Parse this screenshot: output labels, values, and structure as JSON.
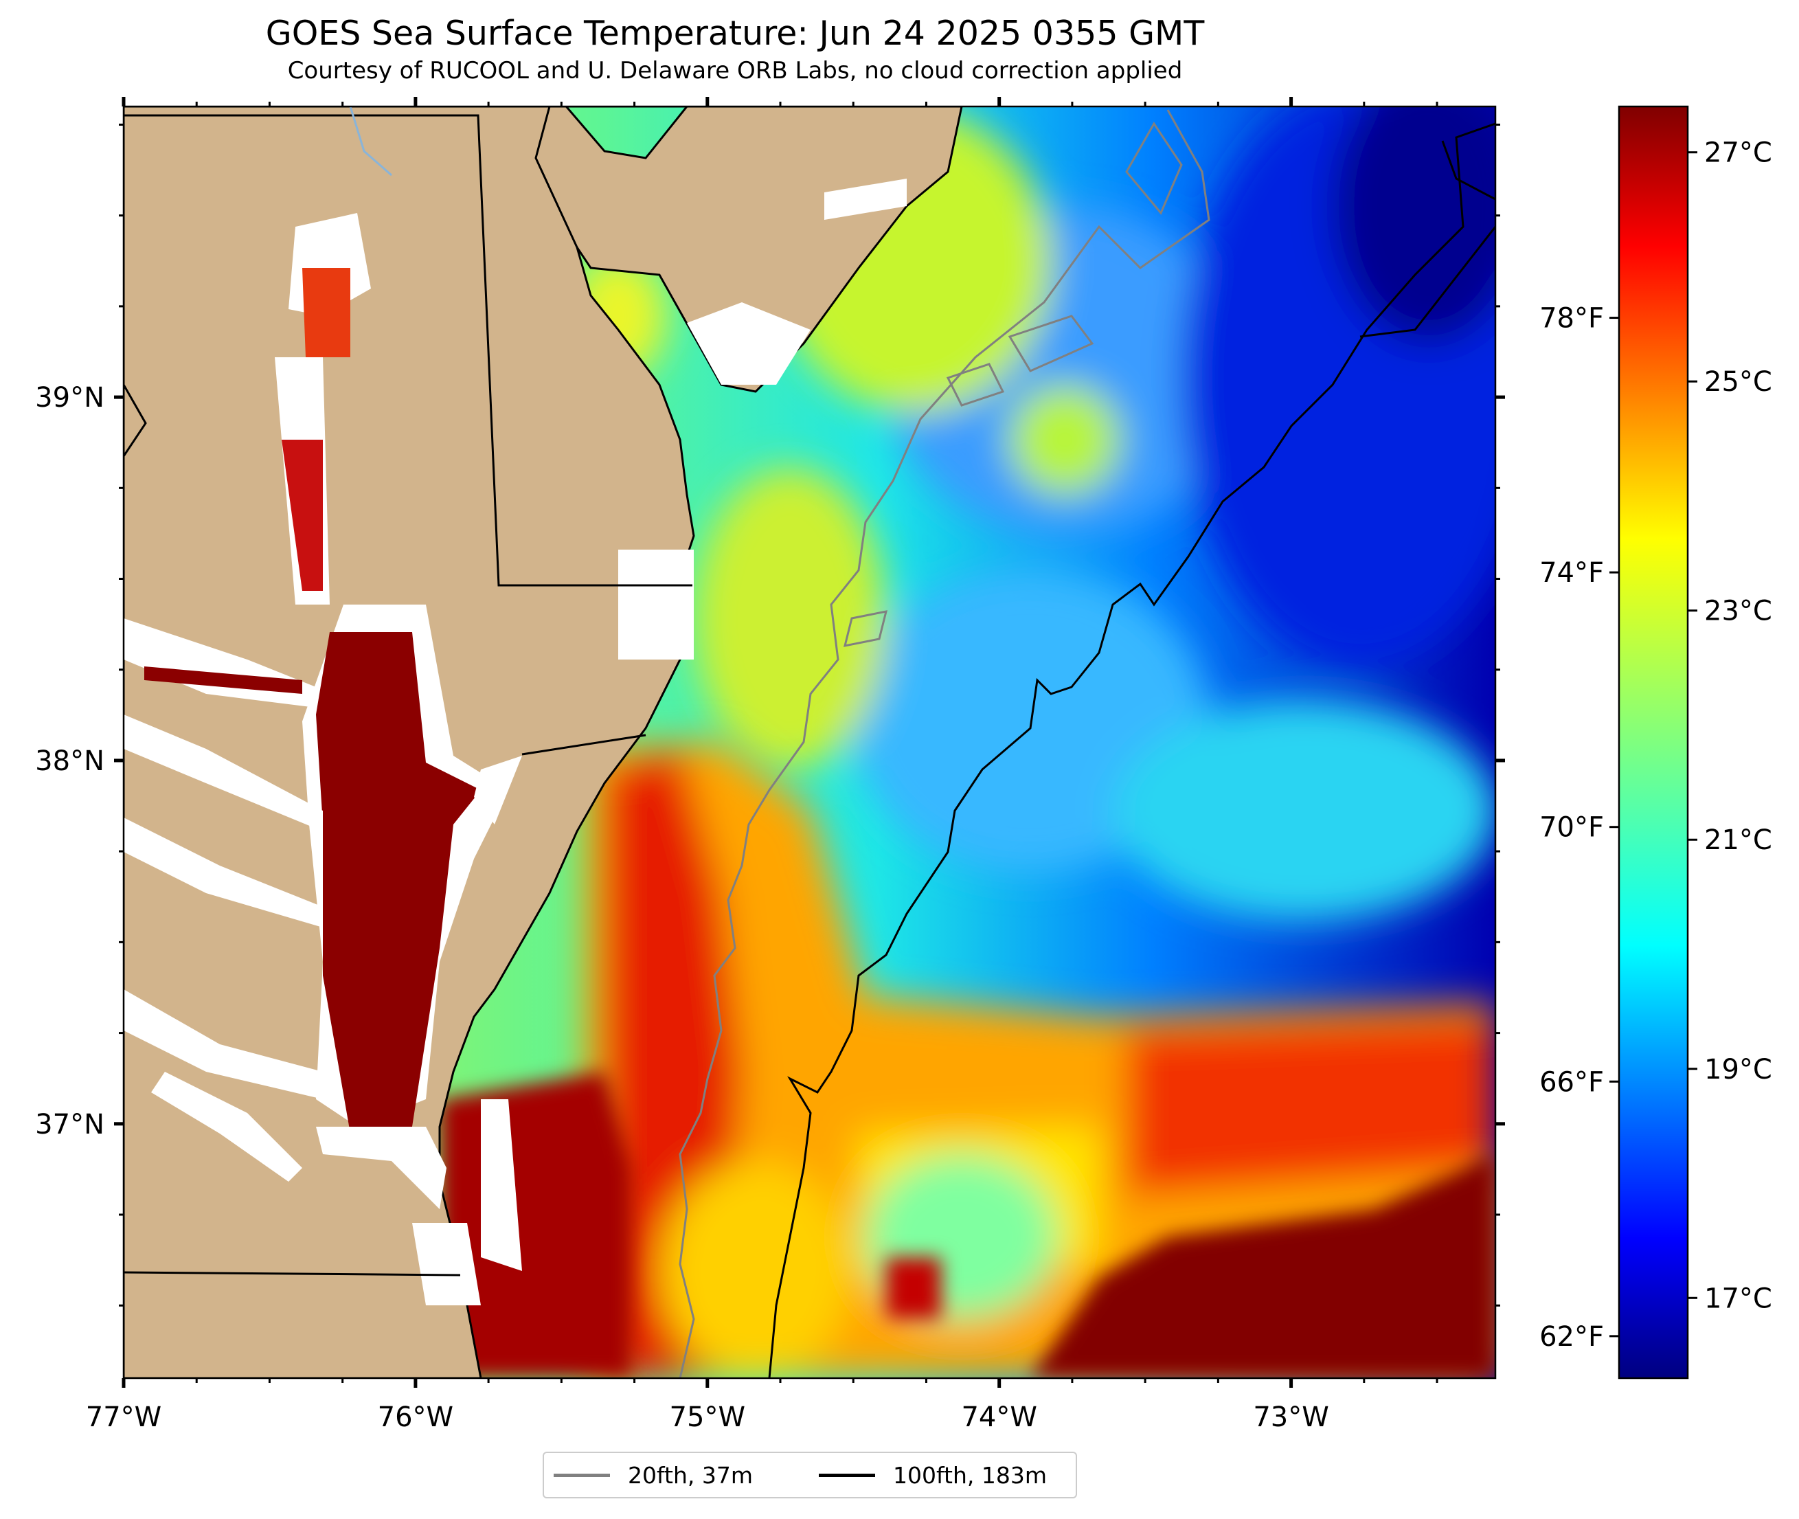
{
  "title": "GOES Sea Surface Temperature: Jun 24 2025 0355 GMT",
  "subtitle": "Courtesy of RUCOOL and U. Delaware ORB Labs, no cloud correction applied",
  "map": {
    "lon_range": [
      -77.0,
      -72.3
    ],
    "lat_range": [
      36.3,
      39.8
    ],
    "x_ticks": [
      {
        "value": -77,
        "label": "77°W"
      },
      {
        "value": -76,
        "label": "76°W"
      },
      {
        "value": -75,
        "label": "75°W"
      },
      {
        "value": -74,
        "label": "74°W"
      },
      {
        "value": -73,
        "label": "73°W"
      }
    ],
    "y_ticks": [
      {
        "value": 39,
        "label": "39°N"
      },
      {
        "value": 38,
        "label": "38°N"
      },
      {
        "value": 37,
        "label": "37°N"
      }
    ],
    "colors": {
      "land": "#d2b48c",
      "cloud_or_nodata": "#ffffff",
      "coast": "#000000",
      "isobath_20": "#808080",
      "isobath_100": "#000000"
    }
  },
  "colorbar": {
    "colormap": "jet",
    "celsius_range": [
      16.3,
      27.4
    ],
    "celsius_ticks": [
      {
        "value": 27,
        "label": "27°C"
      },
      {
        "value": 25,
        "label": "25°C"
      },
      {
        "value": 23,
        "label": "23°C"
      },
      {
        "value": 21,
        "label": "21°C"
      },
      {
        "value": 19,
        "label": "19°C"
      },
      {
        "value": 17,
        "label": "17°C"
      }
    ],
    "fahrenheit_ticks": [
      {
        "value": 78,
        "label": "78°F"
      },
      {
        "value": 74,
        "label": "74°F"
      },
      {
        "value": 70,
        "label": "70°F"
      },
      {
        "value": 66,
        "label": "66°F"
      },
      {
        "value": 62,
        "label": "62°F"
      }
    ]
  },
  "legend": {
    "items": [
      {
        "label": "20fth, 37m",
        "color": "#808080"
      },
      {
        "label": "100fth, 183m",
        "color": "#000000"
      }
    ]
  }
}
